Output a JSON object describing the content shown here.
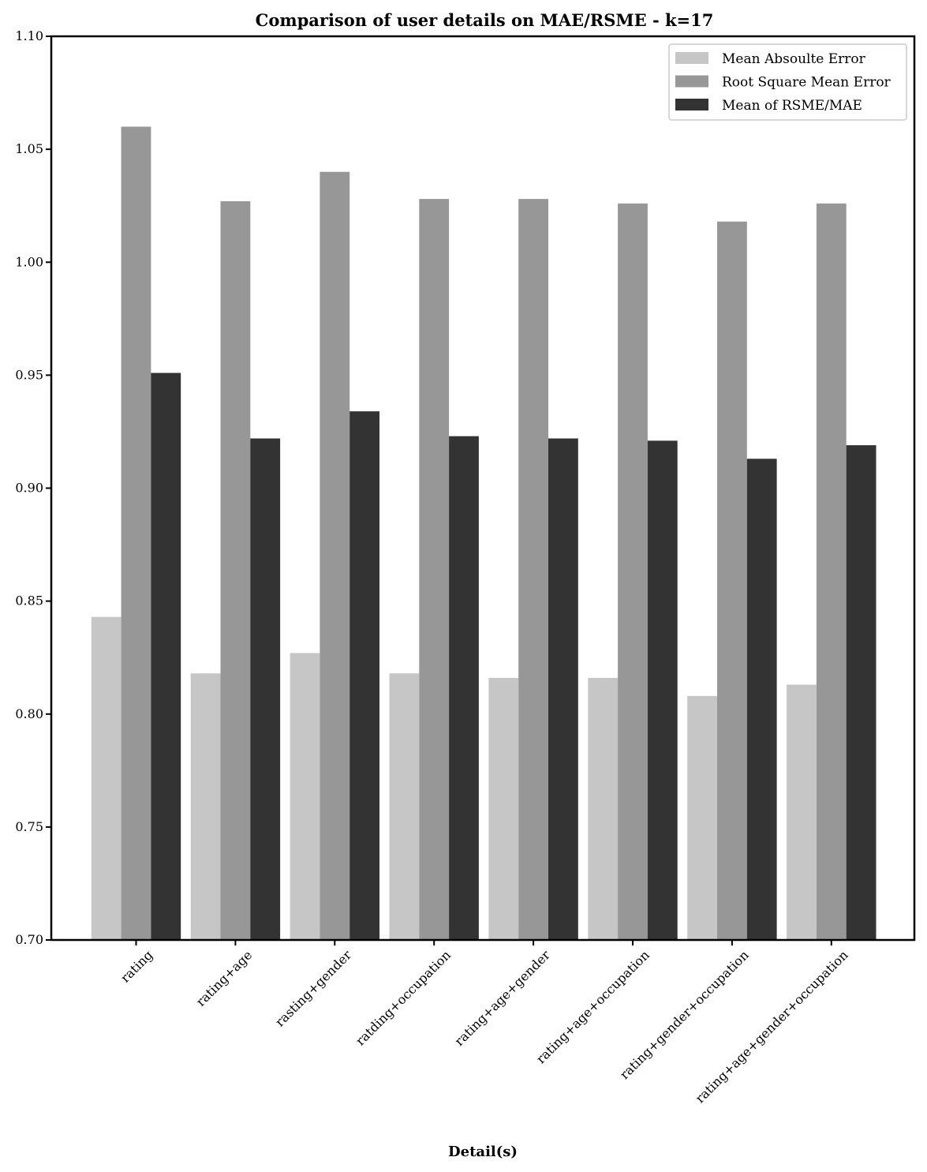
{
  "chart_data": {
    "type": "bar",
    "title": "Comparison of user details on MAE/RSME - k=17",
    "xlabel": "Detail(s)",
    "ylabel": "",
    "ylim": [
      0.7,
      1.1
    ],
    "yticks": [
      "0.70",
      "0.75",
      "0.80",
      "0.85",
      "0.90",
      "0.95",
      "1.00",
      "1.05",
      "1.10"
    ],
    "categories": [
      "rating",
      "rating+age",
      "rasting+gender",
      "ratding+occupation",
      "rating+age+gender",
      "rating+age+occupation",
      "rating+gender+occupation",
      "rating+age+gender+occupation"
    ],
    "series": [
      {
        "name": "Mean Absoulte Error",
        "color": "#c6c6c6",
        "values": [
          0.843,
          0.818,
          0.827,
          0.818,
          0.816,
          0.816,
          0.808,
          0.813
        ]
      },
      {
        "name": "Root Square Mean Error",
        "color": "#979797",
        "values": [
          1.06,
          1.027,
          1.04,
          1.028,
          1.028,
          1.026,
          1.018,
          1.026
        ]
      },
      {
        "name": "Mean of RSME/MAE",
        "color": "#333333",
        "values": [
          0.951,
          0.922,
          0.934,
          0.923,
          0.922,
          0.921,
          0.913,
          0.919
        ]
      }
    ],
    "legend_position": "top-right",
    "grid": false
  }
}
